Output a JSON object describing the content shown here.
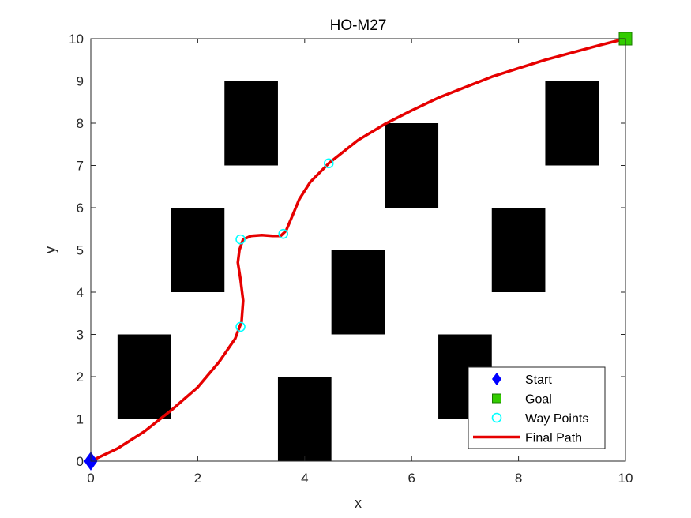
{
  "chart_data": {
    "type": "scatter",
    "title": "HO-M27",
    "xlabel": "x",
    "ylabel": "y",
    "xlim": [
      0,
      10
    ],
    "ylim": [
      0,
      10
    ],
    "x_ticks": [
      "0",
      "2",
      "4",
      "6",
      "8",
      "10"
    ],
    "y_ticks": [
      "0",
      "1",
      "2",
      "3",
      "4",
      "5",
      "6",
      "7",
      "8",
      "9",
      "10"
    ],
    "grid": false,
    "legend_position": "bottom-right",
    "obstacles": [
      {
        "x": [
          0.5,
          1.5
        ],
        "y": [
          1,
          3
        ]
      },
      {
        "x": [
          1.5,
          2.5
        ],
        "y": [
          4,
          6
        ]
      },
      {
        "x": [
          2.5,
          3.5
        ],
        "y": [
          7,
          9
        ]
      },
      {
        "x": [
          3.5,
          4.5
        ],
        "y": [
          0,
          2
        ]
      },
      {
        "x": [
          4.5,
          5.5
        ],
        "y": [
          3,
          5
        ]
      },
      {
        "x": [
          5.5,
          6.5
        ],
        "y": [
          6,
          8
        ]
      },
      {
        "x": [
          6.5,
          7.5
        ],
        "y": [
          1,
          3
        ]
      },
      {
        "x": [
          7.5,
          8.5
        ],
        "y": [
          4,
          6
        ]
      },
      {
        "x": [
          8.5,
          9.5
        ],
        "y": [
          7,
          9
        ]
      }
    ],
    "series": [
      {
        "name": "Start",
        "marker": "diamond",
        "color": "#0000FF",
        "points": [
          [
            0,
            0
          ]
        ]
      },
      {
        "name": "Goal",
        "marker": "square",
        "color": "#33CC00",
        "points": [
          [
            10,
            10
          ]
        ]
      },
      {
        "name": "Way Points",
        "marker": "circle",
        "color": "#00FFFF",
        "points": [
          [
            2.8,
            3.18
          ],
          [
            2.8,
            5.25
          ],
          [
            3.6,
            5.38
          ],
          [
            4.45,
            7.05
          ]
        ]
      },
      {
        "name": "Final Path",
        "marker": "line",
        "color": "#E60000",
        "points": [
          [
            0,
            0
          ],
          [
            0.5,
            0.3
          ],
          [
            1.0,
            0.7
          ],
          [
            1.5,
            1.2
          ],
          [
            2.0,
            1.75
          ],
          [
            2.4,
            2.35
          ],
          [
            2.7,
            2.9
          ],
          [
            2.82,
            3.3
          ],
          [
            2.85,
            3.8
          ],
          [
            2.8,
            4.3
          ],
          [
            2.75,
            4.7
          ],
          [
            2.78,
            5.0
          ],
          [
            2.85,
            5.25
          ],
          [
            3.0,
            5.33
          ],
          [
            3.2,
            5.35
          ],
          [
            3.4,
            5.33
          ],
          [
            3.55,
            5.33
          ],
          [
            3.65,
            5.45
          ],
          [
            3.75,
            5.75
          ],
          [
            3.9,
            6.2
          ],
          [
            4.1,
            6.6
          ],
          [
            4.45,
            7.05
          ],
          [
            5.0,
            7.6
          ],
          [
            5.5,
            7.98
          ],
          [
            6.0,
            8.3
          ],
          [
            6.5,
            8.6
          ],
          [
            7.0,
            8.85
          ],
          [
            7.5,
            9.1
          ],
          [
            8.0,
            9.3
          ],
          [
            8.5,
            9.5
          ],
          [
            9.0,
            9.67
          ],
          [
            9.5,
            9.84
          ],
          [
            10.0,
            10.0
          ]
        ]
      }
    ]
  }
}
